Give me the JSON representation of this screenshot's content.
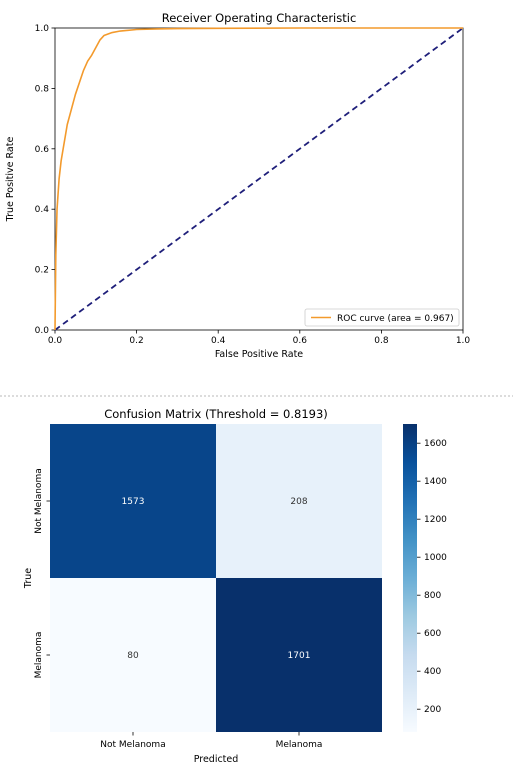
{
  "chart_data": [
    {
      "type": "line",
      "title": "Receiver Operating Characteristic",
      "xlabel": "False Positive Rate",
      "ylabel": "True Positive Rate",
      "xlim": [
        0.0,
        1.0
      ],
      "ylim": [
        0.0,
        1.0
      ],
      "x_ticks": [
        "0.0",
        "0.2",
        "0.4",
        "0.6",
        "0.8",
        "1.0"
      ],
      "y_ticks": [
        "0.0",
        "0.2",
        "0.4",
        "0.6",
        "0.8",
        "1.0"
      ],
      "grid": false,
      "legend_position": "lower right",
      "series": [
        {
          "name": "ROC curve (area = 0.967)",
          "color": "#f39a2c",
          "x": [
            0.0,
            0.002,
            0.005,
            0.01,
            0.015,
            0.02,
            0.025,
            0.03,
            0.04,
            0.05,
            0.06,
            0.07,
            0.08,
            0.09,
            0.1,
            0.11,
            0.12,
            0.14,
            0.16,
            0.2,
            0.25,
            0.3,
            0.4,
            0.6,
            0.8,
            1.0
          ],
          "y": [
            0.0,
            0.25,
            0.4,
            0.5,
            0.56,
            0.6,
            0.64,
            0.68,
            0.73,
            0.78,
            0.82,
            0.86,
            0.89,
            0.91,
            0.935,
            0.96,
            0.975,
            0.985,
            0.99,
            0.995,
            0.997,
            0.998,
            0.999,
            1.0,
            1.0,
            1.0
          ]
        },
        {
          "color": "#1f1f7a",
          "style": "dashed",
          "x": [
            0.0,
            1.0
          ],
          "y": [
            0.0,
            1.0
          ]
        }
      ]
    },
    {
      "type": "heatmap",
      "title": "Confusion Matrix (Threshold = 0.8193)",
      "xlabel": "Predicted",
      "ylabel": "True",
      "x_categories": [
        "Not Melanoma",
        "Melanoma"
      ],
      "y_categories": [
        "Not Melanoma",
        "Melanoma"
      ],
      "values": [
        [
          1573,
          208
        ],
        [
          80,
          1701
        ]
      ],
      "colormap": "Blues",
      "colorbar_ticks": [
        "200",
        "400",
        "600",
        "800",
        "1000",
        "1200",
        "1400",
        "1600"
      ],
      "colorbar_range": [
        80,
        1701
      ]
    }
  ]
}
